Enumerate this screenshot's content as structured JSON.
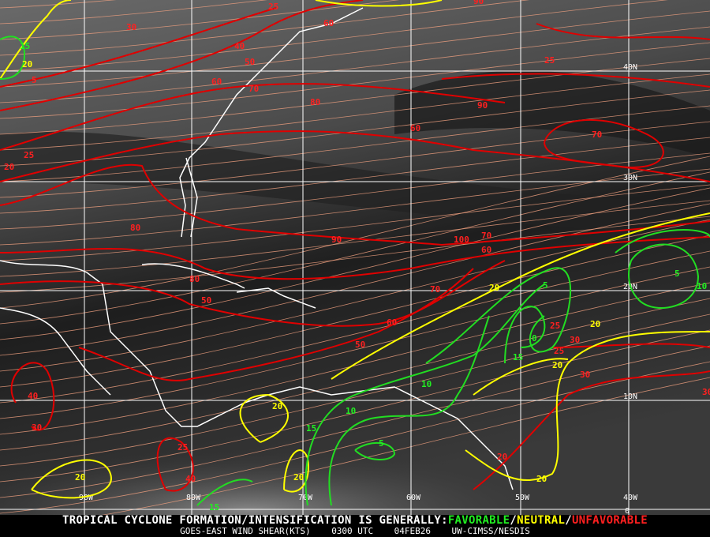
{
  "colors": {
    "favorable": "#22ee22",
    "neutral": "#ffff00",
    "unfavorable": "#ff2020",
    "streamlines": "#f0a080",
    "grid": "#ffffff",
    "coastline": "#ffffff"
  },
  "grid": {
    "longitudes": [
      "90W",
      "80W",
      "70W",
      "60W",
      "50W",
      "40W"
    ],
    "latitudes": [
      "40N",
      "30N",
      "20N",
      "10N",
      "0"
    ]
  },
  "contour_labels": {
    "unfavorable": [
      "25",
      "30",
      "40",
      "50",
      "60",
      "70",
      "80",
      "90",
      "60",
      "70",
      "80",
      "90",
      "100",
      "70",
      "60",
      "80",
      "50",
      "70",
      "60",
      "50",
      "40",
      "30",
      "25",
      "40",
      "25",
      "30",
      "25",
      "30",
      "20",
      "30",
      "20",
      "25",
      "5",
      "90",
      "60",
      "25"
    ],
    "neutral": [
      "20",
      "20",
      "20",
      "20",
      "20",
      "20",
      "20",
      "20"
    ],
    "favorable": [
      "15",
      "5",
      "5",
      "10",
      "0",
      "15",
      "10",
      "10",
      "15",
      "5",
      "15"
    ]
  },
  "footer": {
    "headline": "TROPICAL CYCLONE FORMATION/INTENSIFICATION IS GENERALLY:",
    "favorable": "FAVORABLE",
    "sep1": "/",
    "neutral": "NEUTRAL",
    "sep2": "/",
    "unfavorable": "UNFAVORABLE",
    "product": "GOES-EAST WIND SHEAR(KTS)",
    "time": "0300 UTC",
    "date": "04FEB26",
    "source": "UW-CIMSS/NESDIS"
  }
}
